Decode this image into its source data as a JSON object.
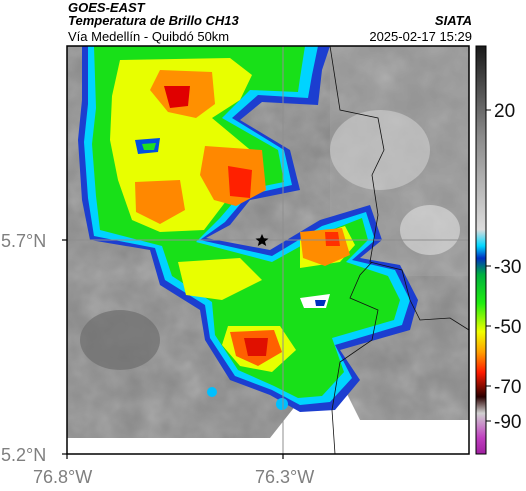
{
  "header": {
    "satellite": "GOES-EAST",
    "product": "Temperatura de Brillo CH13",
    "route": "Vía Medellín - Quibdó 50km",
    "brand": "SIATA",
    "datetime": "2025-02-17 15:29"
  },
  "map": {
    "lat_ticks": [
      "5.7°N",
      "5.2°N"
    ],
    "lon_ticks": [
      "76.8°W",
      "76.3°W"
    ],
    "marker": "star-marker",
    "unit_hint": "brightness temperature (°C)"
  },
  "colorbar": {
    "ticks": [
      "20",
      "-30",
      "-50",
      "-70",
      "-90"
    ],
    "colors": {
      "warm_top": "#202020",
      "gray_mid": "#bfbfbf",
      "cyan": "#00c0ff",
      "blue": "#0050e0",
      "green": "#10e010",
      "yellow": "#f0ff00",
      "orange": "#ff8000",
      "red": "#ff1000",
      "dark_red": "#500000",
      "magenta": "#c040c0"
    }
  }
}
